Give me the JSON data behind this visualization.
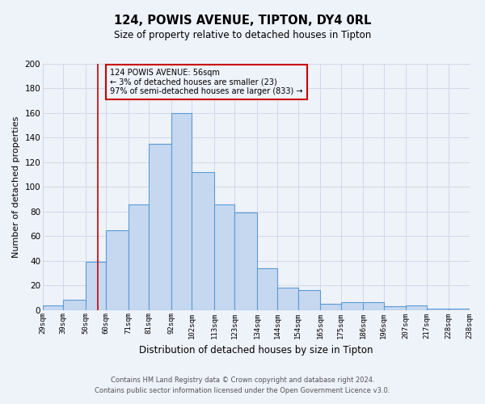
{
  "title": "124, POWIS AVENUE, TIPTON, DY4 0RL",
  "subtitle": "Size of property relative to detached houses in Tipton",
  "xlabel": "Distribution of detached houses by size in Tipton",
  "ylabel": "Number of detached properties",
  "footer_line1": "Contains HM Land Registry data © Crown copyright and database right 2024.",
  "footer_line2": "Contains public sector information licensed under the Open Government Licence v3.0.",
  "bins": [
    29,
    39,
    50,
    60,
    71,
    81,
    92,
    102,
    113,
    123,
    134,
    144,
    154,
    165,
    175,
    186,
    196,
    207,
    217,
    228,
    238
  ],
  "bin_labels": [
    "29sqm",
    "39sqm",
    "50sqm",
    "60sqm",
    "71sqm",
    "81sqm",
    "92sqm",
    "102sqm",
    "113sqm",
    "123sqm",
    "134sqm",
    "144sqm",
    "154sqm",
    "165sqm",
    "175sqm",
    "186sqm",
    "196sqm",
    "207sqm",
    "217sqm",
    "228sqm",
    "238sqm"
  ],
  "counts": [
    4,
    8,
    39,
    65,
    86,
    135,
    160,
    112,
    86,
    79,
    34,
    18,
    16,
    5,
    6,
    6,
    3,
    4,
    1,
    1
  ],
  "bar_color": "#c5d8f0",
  "bar_edge_color": "#5b9bd5",
  "grid_color": "#d0d8e8",
  "annotation_line1": "124 POWIS AVENUE: 56sqm",
  "annotation_line2": "← 3% of detached houses are smaller (23)",
  "annotation_line3": "97% of semi-detached houses are larger (833) →",
  "annotation_box_edge_color": "#cc0000",
  "vline_x": 56,
  "vline_color": "#cc0000",
  "ylim": [
    0,
    200
  ],
  "yticks": [
    0,
    20,
    40,
    60,
    80,
    100,
    120,
    140,
    160,
    180,
    200
  ],
  "background_color": "#eef2f9"
}
